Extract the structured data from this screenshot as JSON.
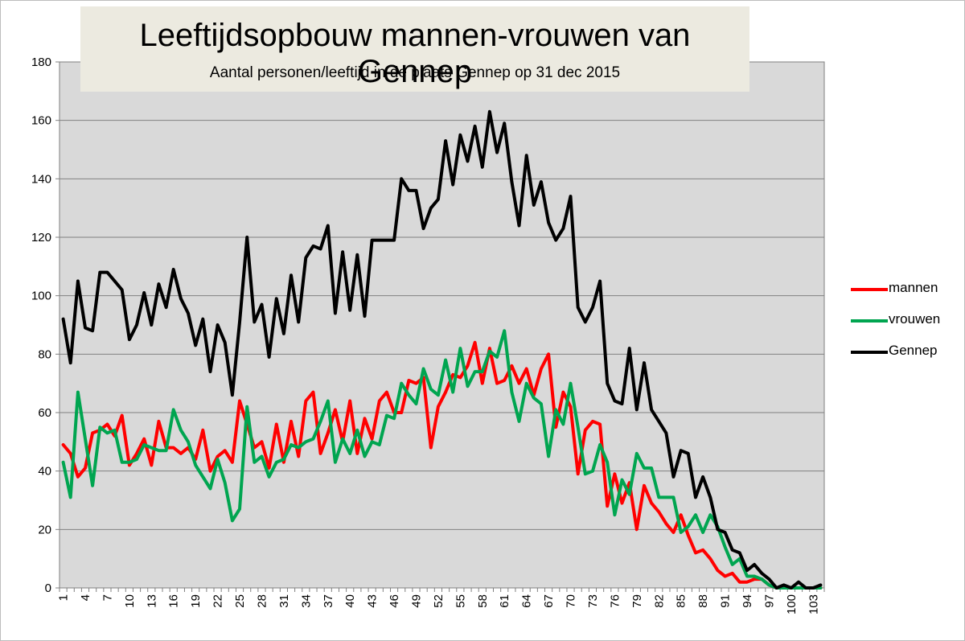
{
  "chart_data": {
    "type": "line",
    "title": "Leeftijdsopbouw mannen-vrouwen van Gennep",
    "subtitle": "Aantal personen/leeftijd in de plaats Gennep op 31 dec 2015",
    "xlabel": "",
    "ylabel": "",
    "ylim": [
      0,
      180
    ],
    "yticks": [
      0,
      20,
      40,
      60,
      80,
      100,
      120,
      140,
      160,
      180
    ],
    "x": [
      1,
      2,
      3,
      4,
      5,
      6,
      7,
      8,
      9,
      10,
      11,
      12,
      13,
      14,
      15,
      16,
      17,
      18,
      19,
      20,
      21,
      22,
      23,
      24,
      25,
      26,
      27,
      28,
      29,
      30,
      31,
      32,
      33,
      34,
      35,
      36,
      37,
      38,
      39,
      40,
      41,
      42,
      43,
      44,
      45,
      46,
      47,
      48,
      49,
      50,
      51,
      52,
      53,
      54,
      55,
      56,
      57,
      58,
      59,
      60,
      61,
      62,
      63,
      64,
      65,
      66,
      67,
      68,
      69,
      70,
      71,
      72,
      73,
      74,
      75,
      76,
      77,
      78,
      79,
      80,
      81,
      82,
      83,
      84,
      85,
      86,
      87,
      88,
      89,
      90,
      91,
      92,
      93,
      94,
      95,
      96,
      97,
      98,
      99,
      100,
      101,
      102,
      103,
      104
    ],
    "xtick_labels": [
      "1",
      "4",
      "7",
      "10",
      "13",
      "16",
      "19",
      "22",
      "25",
      "28",
      "31",
      "34",
      "37",
      "40",
      "43",
      "46",
      "49",
      "52",
      "55",
      "58",
      "61",
      "64",
      "67",
      "70",
      "73",
      "76",
      "79",
      "82",
      "85",
      "88",
      "91",
      "94",
      "97",
      "100",
      "103"
    ],
    "grid": true,
    "legend_position": "right",
    "series": [
      {
        "name": "mannen",
        "color": "#ff0000",
        "values": [
          49,
          46,
          38,
          41,
          53,
          54,
          56,
          52,
          59,
          42,
          46,
          51,
          42,
          57,
          48,
          48,
          46,
          48,
          44,
          54,
          40,
          45,
          47,
          43,
          64,
          56,
          48,
          50,
          41,
          56,
          43,
          57,
          45,
          64,
          67,
          46,
          53,
          61,
          50,
          64,
          46,
          58,
          51,
          64,
          67,
          60,
          60,
          71,
          70,
          72,
          48,
          62,
          67,
          73,
          72,
          76,
          84,
          70,
          82,
          70,
          71,
          76,
          70,
          75,
          66,
          75,
          80,
          55,
          67,
          62,
          39,
          54,
          57,
          56,
          28,
          39,
          29,
          36,
          20,
          35,
          29,
          26,
          22,
          19,
          25,
          18,
          12,
          13,
          10,
          6,
          4,
          5,
          2,
          2,
          3,
          3,
          1,
          0,
          0,
          0,
          0,
          0,
          0,
          0
        ]
      },
      {
        "name": "vrouwen",
        "color": "#00a550",
        "values": [
          43,
          31,
          67,
          51,
          35,
          55,
          53,
          54,
          43,
          43,
          44,
          49,
          48,
          47,
          47,
          61,
          54,
          50,
          42,
          38,
          34,
          44,
          36,
          23,
          27,
          62,
          43,
          45,
          38,
          43,
          44,
          49,
          48,
          50,
          51,
          57,
          64,
          43,
          51,
          46,
          54,
          45,
          50,
          49,
          59,
          58,
          70,
          66,
          63,
          75,
          68,
          66,
          78,
          67,
          82,
          69,
          74,
          74,
          81,
          79,
          88,
          67,
          57,
          70,
          65,
          63,
          45,
          61,
          56,
          70,
          55,
          39,
          40,
          49,
          43,
          25,
          37,
          32,
          46,
          41,
          41,
          31,
          31,
          31,
          19,
          21,
          25,
          19,
          25,
          21,
          14,
          8,
          10,
          4,
          4,
          3,
          1,
          0,
          0,
          0,
          0,
          0,
          0,
          0
        ]
      },
      {
        "name": "Gennep",
        "color": "#000000",
        "values": [
          92,
          77,
          105,
          89,
          88,
          108,
          108,
          105,
          102,
          85,
          90,
          101,
          90,
          104,
          96,
          109,
          99,
          94,
          83,
          92,
          74,
          90,
          84,
          66,
          91,
          120,
          91,
          97,
          79,
          99,
          87,
          107,
          91,
          113,
          117,
          116,
          124,
          94,
          115,
          95,
          114,
          93,
          119,
          119,
          119,
          119,
          140,
          136,
          136,
          123,
          130,
          133,
          153,
          138,
          155,
          146,
          158,
          144,
          163,
          149,
          159,
          139,
          124,
          148,
          131,
          139,
          125,
          119,
          123,
          134,
          96,
          91,
          96,
          105,
          70,
          64,
          63,
          82,
          61,
          77,
          61,
          57,
          53,
          38,
          47,
          46,
          31,
          38,
          31,
          20,
          19,
          13,
          12,
          6,
          8,
          5,
          3,
          0,
          1,
          0,
          2,
          0,
          0,
          1
        ]
      }
    ]
  }
}
